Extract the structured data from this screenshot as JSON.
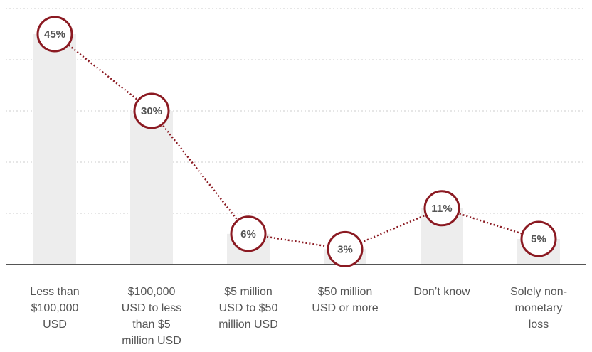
{
  "colors": {
    "bar": "#ededed",
    "marker": "#8b1a22",
    "connector": "#8b1a22",
    "gridline": "#cccccc",
    "axis": "#555555",
    "label": "#555555"
  },
  "chart_data": {
    "type": "bar",
    "overlay": "line",
    "categories": [
      "Less than $100,000 USD",
      "$100,000 USD to less than $5 million USD",
      "$5 million USD to $50 million USD",
      "$50 million USD or more",
      "Don’t know",
      "Solely non-monetary loss"
    ],
    "values": [
      45,
      30,
      6,
      3,
      11,
      5
    ],
    "data_labels": [
      "45%",
      "30%",
      "6%",
      "3%",
      "11%",
      "5%"
    ],
    "ylim": [
      0,
      50
    ],
    "gridlines": [
      10,
      20,
      30,
      40,
      50
    ],
    "grid": true,
    "legend": "none",
    "title": "",
    "xlabel": "",
    "ylabel": ""
  }
}
